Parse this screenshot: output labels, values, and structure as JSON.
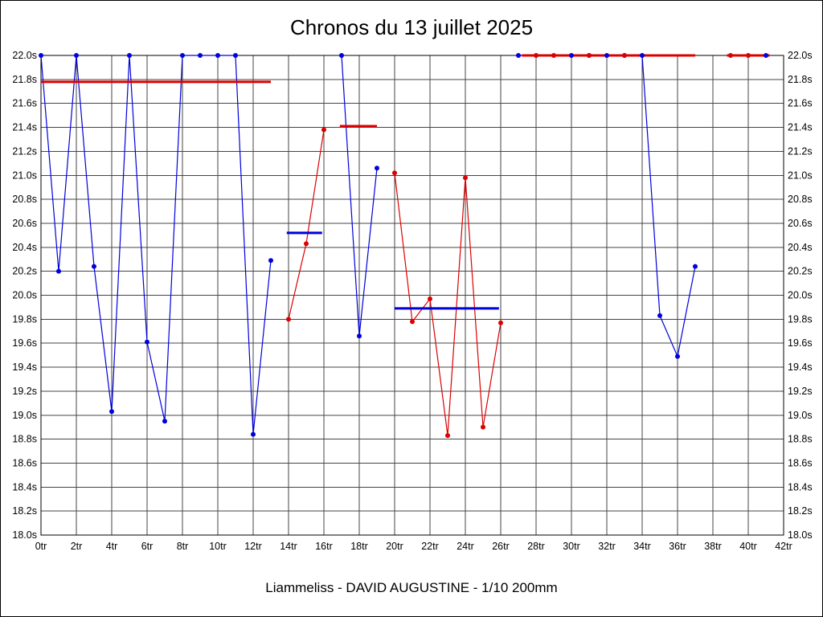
{
  "header": {
    "title": "Chronos du 13 juillet 2025"
  },
  "footer": {
    "text": "Liammeliss - DAVID AUGUSTINE - 1/10 200mm"
  },
  "chart_data": {
    "type": "line",
    "title": "Chronos du 13 juillet 2025",
    "caption": "Liammeliss - DAVID AUGUSTINE - 1/10 200mm",
    "x_unit": "tr",
    "y_unit": "s",
    "xlim": [
      0,
      42
    ],
    "xtick_step": 2,
    "ylim": [
      18.0,
      22.0
    ],
    "ytick_step": 0.2,
    "grid": true,
    "legend": "none",
    "colors": {
      "blue": "#0000dd",
      "red": "#dd0000",
      "grid": "#444444",
      "axis": "#000000"
    },
    "series": [
      {
        "name": "chronos-bleu",
        "color": "blue",
        "segments": [
          [
            [
              0,
              22.0
            ],
            [
              1,
              20.2
            ],
            [
              2,
              22.0
            ],
            [
              3,
              20.24
            ],
            [
              4,
              19.03
            ],
            [
              5,
              22.0
            ],
            [
              6,
              19.61
            ],
            [
              7,
              18.95
            ],
            [
              8,
              22.0
            ],
            [
              9,
              22.0
            ],
            [
              10,
              22.0
            ],
            [
              11,
              22.0
            ],
            [
              12,
              18.84
            ],
            [
              13,
              20.29
            ]
          ],
          [
            [
              17,
              22.0
            ],
            [
              18,
              19.66
            ],
            [
              19,
              21.06
            ]
          ],
          [
            [
              27,
              22.0
            ],
            [
              30,
              22.0
            ],
            [
              31,
              22.0
            ],
            [
              32,
              22.0
            ],
            [
              33,
              22.0
            ],
            [
              34,
              22.0
            ],
            [
              35,
              19.83
            ],
            [
              36,
              19.49
            ],
            [
              37,
              20.24
            ]
          ],
          [
            [
              41,
              22.0
            ]
          ]
        ]
      },
      {
        "name": "chronos-rouge",
        "color": "red",
        "segments": [
          [
            [
              14,
              19.8
            ],
            [
              15,
              20.43
            ],
            [
              16,
              21.38
            ]
          ],
          [
            [
              20,
              21.02
            ],
            [
              21,
              19.78
            ],
            [
              22,
              19.97
            ],
            [
              23,
              18.83
            ],
            [
              24,
              20.98
            ],
            [
              25,
              18.9
            ],
            [
              26,
              19.77
            ]
          ],
          [
            [
              28,
              22.0
            ],
            [
              29,
              22.0
            ],
            [
              31,
              22.0
            ],
            [
              33,
              22.0
            ]
          ],
          [
            [
              39,
              22.0
            ],
            [
              40,
              22.0
            ]
          ]
        ]
      }
    ],
    "average_bars": [
      {
        "color": "red",
        "from": 0,
        "to": 13,
        "value": 21.78
      },
      {
        "color": "blue",
        "from": 13.9,
        "to": 15.9,
        "value": 20.52
      },
      {
        "color": "red",
        "from": 16.9,
        "to": 19.0,
        "value": 21.41
      },
      {
        "color": "blue",
        "from": 20.0,
        "to": 25.9,
        "value": 19.89
      },
      {
        "color": "red",
        "from": 27.2,
        "to": 37.0,
        "value": 22.0
      },
      {
        "color": "red",
        "from": 38.8,
        "to": 41.2,
        "value": 22.0
      }
    ]
  }
}
